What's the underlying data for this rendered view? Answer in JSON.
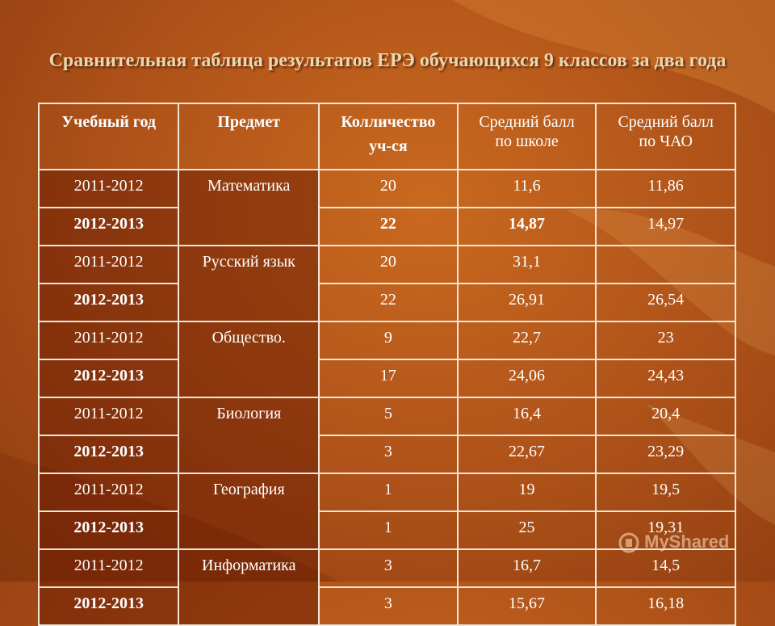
{
  "title": "Сравнительная таблица результатов ЕРЭ обучающихся 9 классов за два года",
  "columns": {
    "year": "Учебный год",
    "subject": "Предмет",
    "count_line1": "Колличество",
    "count_line2": "уч-ся",
    "school_avg": "Средний балл по школе",
    "region_avg": "Средний балл по ЧАО"
  },
  "subjects": [
    {
      "name": "Математика",
      "rows": [
        {
          "year": "2011-2012",
          "count": "20",
          "school": "11,6",
          "region": "11,86"
        },
        {
          "year": "2012-2013",
          "count": "22",
          "school": "14,87",
          "region": "14,97"
        }
      ]
    },
    {
      "name": "Русский язык",
      "rows": [
        {
          "year": "2011-2012",
          "count": "20",
          "school": "31,1",
          "region": ""
        },
        {
          "year": "2012-2013",
          "count": "22",
          "school": "26,91",
          "region": "26,54"
        }
      ]
    },
    {
      "name": "Общество.",
      "rows": [
        {
          "year": "2011-2012",
          "count": "9",
          "school": "22,7",
          "region": "23"
        },
        {
          "year": "2012-2013",
          "count": "17",
          "school": "24,06",
          "region": "24,43"
        }
      ]
    },
    {
      "name": "Биология",
      "rows": [
        {
          "year": "2011-2012",
          "count": "5",
          "school": "16,4",
          "region": "20,4"
        },
        {
          "year": "2012-2013",
          "count": "3",
          "school": "22,67",
          "region": "23,29"
        }
      ]
    },
    {
      "name": "География",
      "rows": [
        {
          "year": "2011-2012",
          "count": "1",
          "school": "19",
          "region": "19,5"
        },
        {
          "year": "2012-2013",
          "count": "1",
          "school": "25",
          "region": "19,31"
        }
      ]
    },
    {
      "name": "Информатика",
      "rows": [
        {
          "year": "2011-2012",
          "count": "3",
          "school": "16,7",
          "region": "14,5"
        },
        {
          "year": "2012-2013",
          "count": "3",
          "school": "15,67",
          "region": "16,18"
        }
      ]
    }
  ],
  "watermark": "MyShared",
  "colors": {
    "background": "#b2551a",
    "highlight": "#6a1e04",
    "text": "#ffffff",
    "title": "#ead7b0"
  }
}
